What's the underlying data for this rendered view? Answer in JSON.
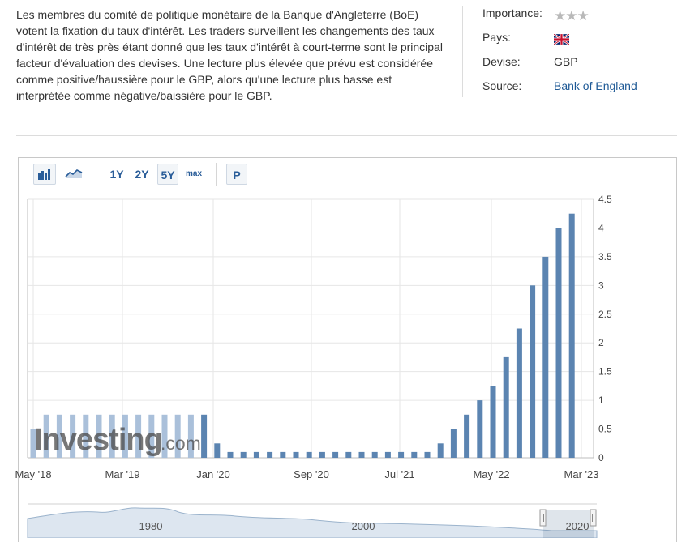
{
  "description": "Les membres du comité de politique monétaire de la Banque d'Angleterre (BoE) votent la fixation du taux d'intérêt. Les traders surveillent les changements des taux d'intérêt de très près étant donné que les taux d'intérêt à court-terme sont le principal facteur d'évaluation des devises. Une lecture plus élevée que prévu est considérée comme positive/haussière pour le GBP, alors qu'une lecture plus basse est interprétée comme négative/baissière pour le GBP.",
  "info": {
    "importance_label": "Importance:",
    "importance_stars": 3,
    "country_label": "Pays:",
    "country_flag": "uk-flag-icon",
    "currency_label": "Devise:",
    "currency_value": "GBP",
    "source_label": "Source:",
    "source_value": "Bank of England"
  },
  "toolbar": {
    "bar_chart_icon": "bar-chart-icon",
    "line_chart_icon": "line-chart-icon",
    "range_1y": "1Y",
    "range_2y": "2Y",
    "range_5y": "5Y",
    "range_max": "max",
    "p_label": "P",
    "selected_range": "5Y"
  },
  "watermark": {
    "brand": "Investing",
    "suffix": ".com"
  },
  "navigator": {
    "labels": [
      "1980",
      "2000",
      "2020"
    ]
  },
  "colors": {
    "bar": "#5b84b1",
    "bar_light": "#aac0da",
    "link": "#1f5a96",
    "accent": "#2a5d99"
  },
  "chart_data": {
    "type": "bar",
    "x_tick_labels": [
      "May '18",
      "Mar '19",
      "Jan '20",
      "Sep '20",
      "Jul '21",
      "May '22",
      "Mar '23"
    ],
    "y_tick_labels": [
      "0",
      "0.5",
      "1",
      "1.5",
      "2",
      "2.5",
      "3",
      "3.5",
      "4",
      "4.5"
    ],
    "ylim": [
      0,
      4.5
    ],
    "grid": true,
    "series": [
      {
        "values": [
          0.5,
          0.75,
          0.75,
          0.75,
          0.75,
          0.75,
          0.75,
          0.75,
          0.75,
          0.75,
          0.75,
          0.75,
          0.75,
          0.75,
          0.25,
          0.1,
          0.1,
          0.1,
          0.1,
          0.1,
          0.1,
          0.1,
          0.1,
          0.1,
          0.1,
          0.1,
          0.1,
          0.1,
          0.1,
          0.1,
          0.1,
          0.25,
          0.5,
          0.75,
          1.0,
          1.25,
          1.75,
          2.25,
          3.0,
          3.5,
          4.0,
          4.25
        ]
      }
    ]
  }
}
